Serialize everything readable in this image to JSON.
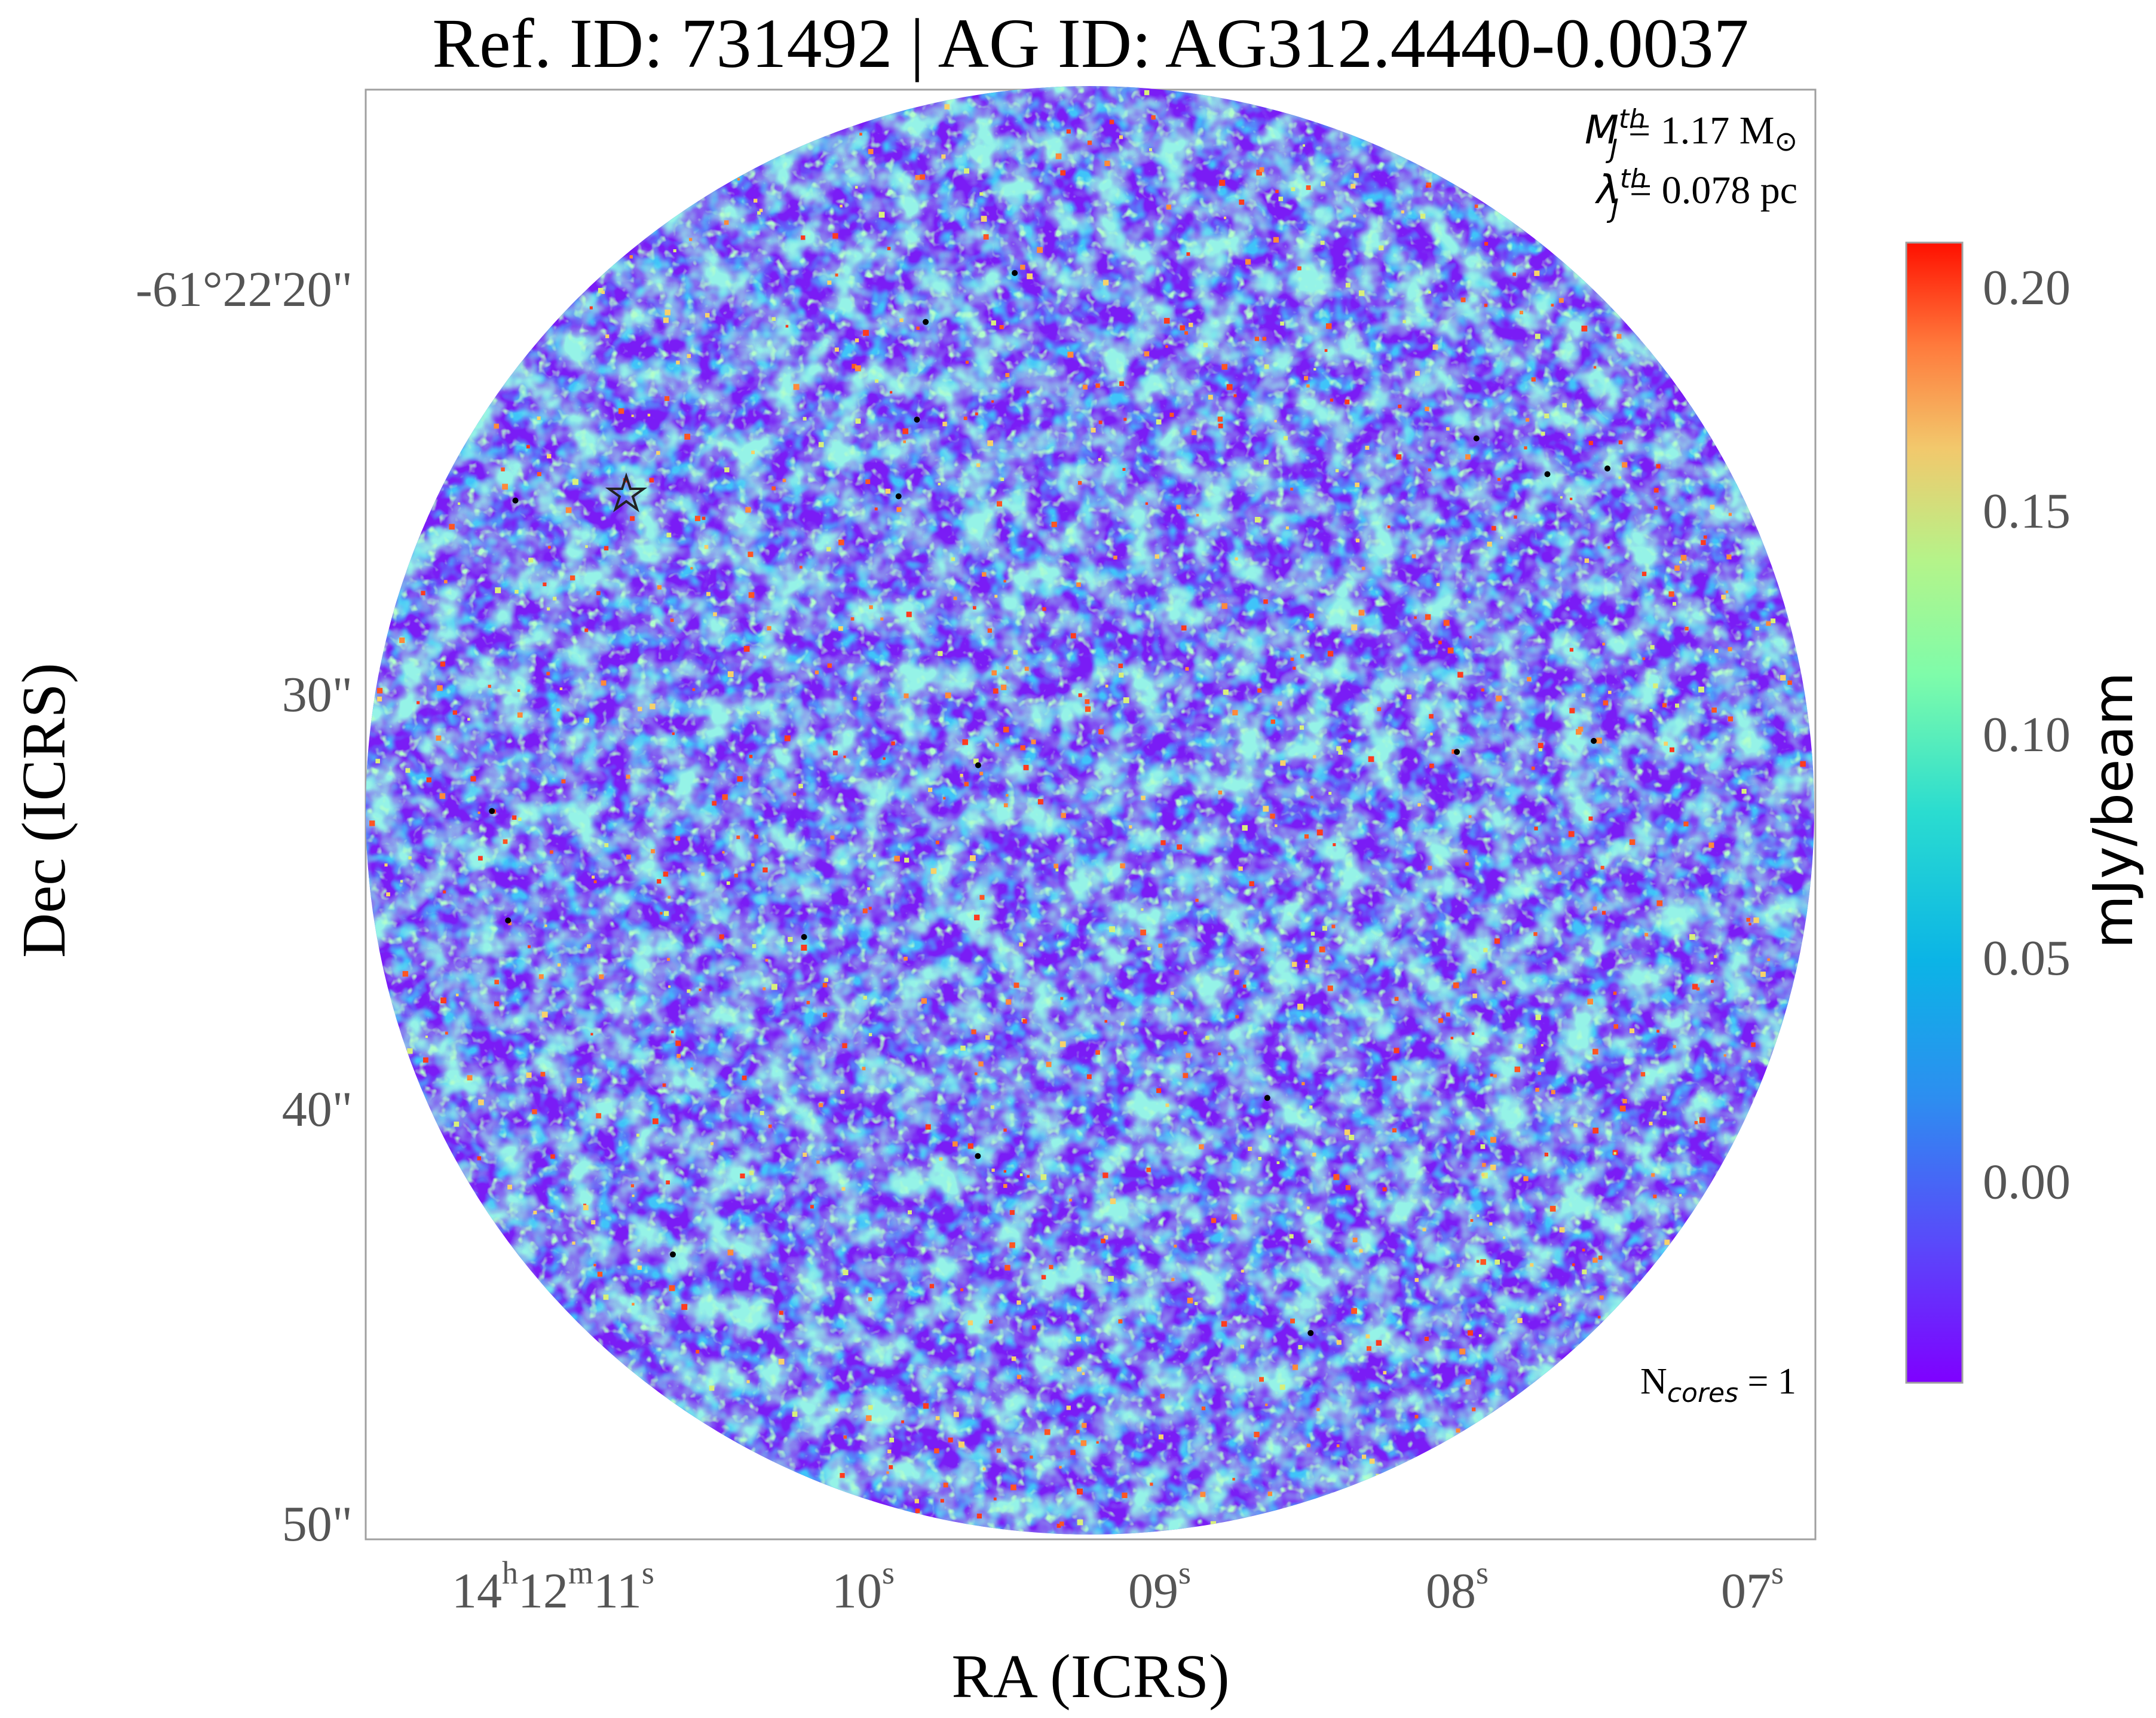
{
  "figure": {
    "title": "Ref. ID: 731492 | AG ID: AG312.4440-0.0037",
    "x_axis_label": "RA (ICRS)",
    "y_axis_label": "Dec (ICRS)",
    "x_ticks": [
      {
        "h": "14",
        "h_sup": "h",
        "m": "12",
        "m_sup": "m",
        "s": "11",
        "s_sup": "s"
      },
      {
        "s": "10",
        "s_sup": "s"
      },
      {
        "s": "09",
        "s_sup": "s"
      },
      {
        "s": "08",
        "s_sup": "s"
      },
      {
        "s": "07",
        "s_sup": "s"
      }
    ],
    "y_ticks": [
      "-61°22'20\"",
      "30\"",
      "40\"",
      "50\""
    ],
    "annotation_mass": {
      "symbol": "M",
      "sub": "J",
      "sup": "th",
      "text": "= 1.17 M",
      "unit_symbol": "⊙"
    },
    "annotation_length": {
      "symbol": "λ",
      "sub": "J",
      "sup": "th",
      "text": "= 0.078 pc"
    },
    "annotation_cores": {
      "prefix": "N",
      "sub": "cores",
      "text": " = 1"
    },
    "star_marker": "star-icon",
    "colorbar": {
      "label": "mJy/beam",
      "ticks": [
        "0.20",
        "0.15",
        "0.10",
        "0.05",
        "0.00"
      ],
      "tick_values": [
        0.2,
        0.15,
        0.1,
        0.05,
        0.0
      ],
      "range": [
        -0.045,
        0.21
      ],
      "colormap": "rainbow"
    },
    "colors": {
      "frame": "#a0a0a0",
      "tick_text": "#555555",
      "title_text": "#000000",
      "background": "#8a2be2"
    }
  }
}
